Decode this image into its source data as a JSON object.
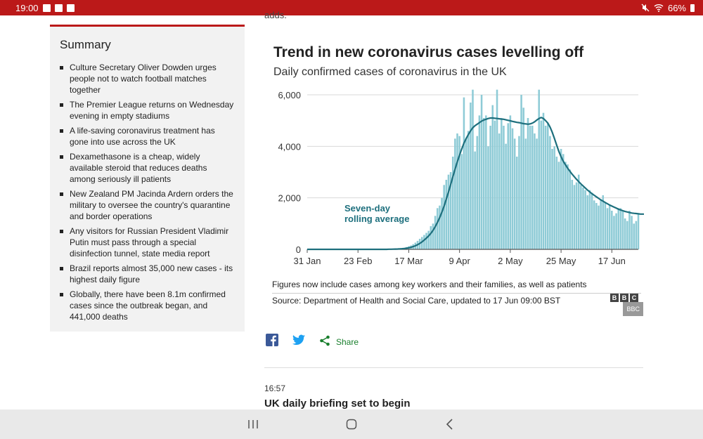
{
  "status": {
    "time": "19:00",
    "battery": "66%"
  },
  "article": {
    "adds_fragment": "adds."
  },
  "summary": {
    "heading": "Summary",
    "items": [
      "Culture Secretary Oliver Dowden urges people not to watch football matches together",
      "The Premier League returns on Wednesday evening in empty stadiums",
      "A life-saving coronavirus treatment has gone into use across the UK",
      "Dexamethasone is a cheap, widely available steroid that reduces deaths among seriously ill patients",
      "New Zealand PM Jacinda Ardern orders the military to oversee the country's quarantine and border operations",
      "Any visitors for Russian President Vladimir Putin must pass through a special disinfection tunnel, state media report",
      "Brazil reports almost 35,000 new cases - its highest daily figure",
      "Globally, there have been 8.1m confirmed cases since the outbreak began, and 441,000 deaths"
    ]
  },
  "chart_data": {
    "type": "bar",
    "title": "Trend in new coronavirus cases levelling off",
    "subtitle": "Daily confirmed cases of coronavirus in the UK",
    "x_ticks": [
      "31 Jan",
      "23 Feb",
      "17 Mar",
      "9 Apr",
      "2 May",
      "25 May",
      "17 Jun"
    ],
    "y_ticks": [
      "0",
      "2,000",
      "4,000",
      "6,000"
    ],
    "ylim": [
      0,
      6000
    ],
    "annotation": "Seven-day rolling average",
    "annotation_lines": [
      "Seven-day",
      "rolling average"
    ],
    "series": [
      {
        "kind": "bars",
        "values": [
          0,
          0,
          0,
          0,
          0,
          0,
          0,
          0,
          0,
          0,
          0,
          0,
          0,
          0,
          0,
          0,
          0,
          0,
          0,
          0,
          0,
          0,
          0,
          0,
          0,
          0,
          0,
          0,
          0,
          0,
          0,
          0,
          0,
          0,
          0,
          0,
          0,
          5,
          8,
          10,
          15,
          20,
          30,
          45,
          60,
          90,
          120,
          150,
          200,
          260,
          330,
          410,
          480,
          560,
          640,
          720,
          900,
          1000,
          1300,
          1600,
          1700,
          2000,
          2500,
          2700,
          2900,
          3000,
          3600,
          4300,
          4500,
          4400,
          3700,
          5900,
          4300,
          4600,
          5700,
          6200,
          3800,
          4400,
          5200,
          6000,
          5100,
          5200,
          4000,
          4800,
          5600,
          5000,
          6200,
          4500,
          5100,
          4800,
          4100,
          4900,
          5200,
          4700,
          4300,
          3600,
          4400,
          6000,
          5500,
          4300,
          5100,
          4800,
          4800,
          4500,
          4300,
          6200,
          5000,
          5300,
          4800,
          4900,
          4400,
          3900,
          4000,
          3600,
          3400,
          3900,
          3700,
          3400,
          3300,
          3100,
          2700,
          2500,
          2600,
          2900,
          2500,
          2400,
          2300,
          2100,
          2300,
          2200,
          1900,
          1800,
          1700,
          1900,
          2100,
          1800,
          1600,
          1700,
          1500,
          1300,
          1400,
          1600,
          1600,
          1500,
          1200,
          1100,
          1500,
          1300,
          1000,
          1100,
          1400
        ]
      },
      {
        "kind": "line",
        "name": "Seven-day rolling average",
        "values": [
          0,
          0,
          0,
          0,
          0,
          0,
          0,
          0,
          0,
          0,
          0,
          0,
          0,
          0,
          0,
          0,
          0,
          0,
          0,
          0,
          0,
          0,
          0,
          0,
          0,
          0,
          0,
          0,
          0,
          0,
          0,
          0,
          0,
          0,
          0,
          0,
          0,
          5,
          6,
          8,
          10,
          13,
          18,
          25,
          33,
          45,
          60,
          80,
          105,
          140,
          180,
          230,
          290,
          360,
          440,
          520,
          620,
          740,
          880,
          1050,
          1230,
          1440,
          1680,
          1950,
          2230,
          2520,
          2820,
          3120,
          3400,
          3660,
          3900,
          4120,
          4300,
          4460,
          4600,
          4720,
          4800,
          4860,
          4920,
          4980,
          5020,
          5050,
          5080,
          5100,
          5100,
          5090,
          5080,
          5070,
          5060,
          5050,
          5030,
          5010,
          4990,
          4970,
          4950,
          4930,
          4920,
          4900,
          4880,
          4870,
          4860,
          4870,
          4900,
          4950,
          5020,
          5080,
          5120,
          5080,
          5000,
          4900,
          4750,
          4550,
          4300,
          4050,
          3800,
          3600,
          3420,
          3280,
          3150,
          3030,
          2920,
          2820,
          2720,
          2630,
          2540,
          2460,
          2380,
          2300,
          2230,
          2160,
          2100,
          2040,
          1980,
          1920,
          1870,
          1820,
          1770,
          1720,
          1680,
          1640,
          1600,
          1560,
          1530,
          1500,
          1470,
          1450,
          1430,
          1410,
          1400,
          1390,
          1380,
          1370,
          1370,
          1370,
          1370,
          1370
        ]
      }
    ]
  },
  "chart_note": "Figures now include cases among key workers and their families, as well as patients",
  "chart_source": "Source: Department of Health and Social Care, updated to 17 Jun 09:00 BST",
  "bbc_letters": [
    "B",
    "B",
    "C"
  ],
  "bbc_tag": "BBC",
  "share": {
    "label": "Share",
    "facebook_icon": "facebook-icon",
    "twitter_icon": "twitter-icon",
    "share_icon": "share-icon"
  },
  "next_post": {
    "time": "16:57",
    "title": "UK daily briefing set to begin"
  },
  "colors": {
    "brand_red": "#bb1919",
    "bar": "#8ecbd6",
    "line": "#1d6f7d",
    "share_green": "#1a7f2e",
    "facebook": "#3b5998",
    "twitter": "#1da1f2"
  }
}
